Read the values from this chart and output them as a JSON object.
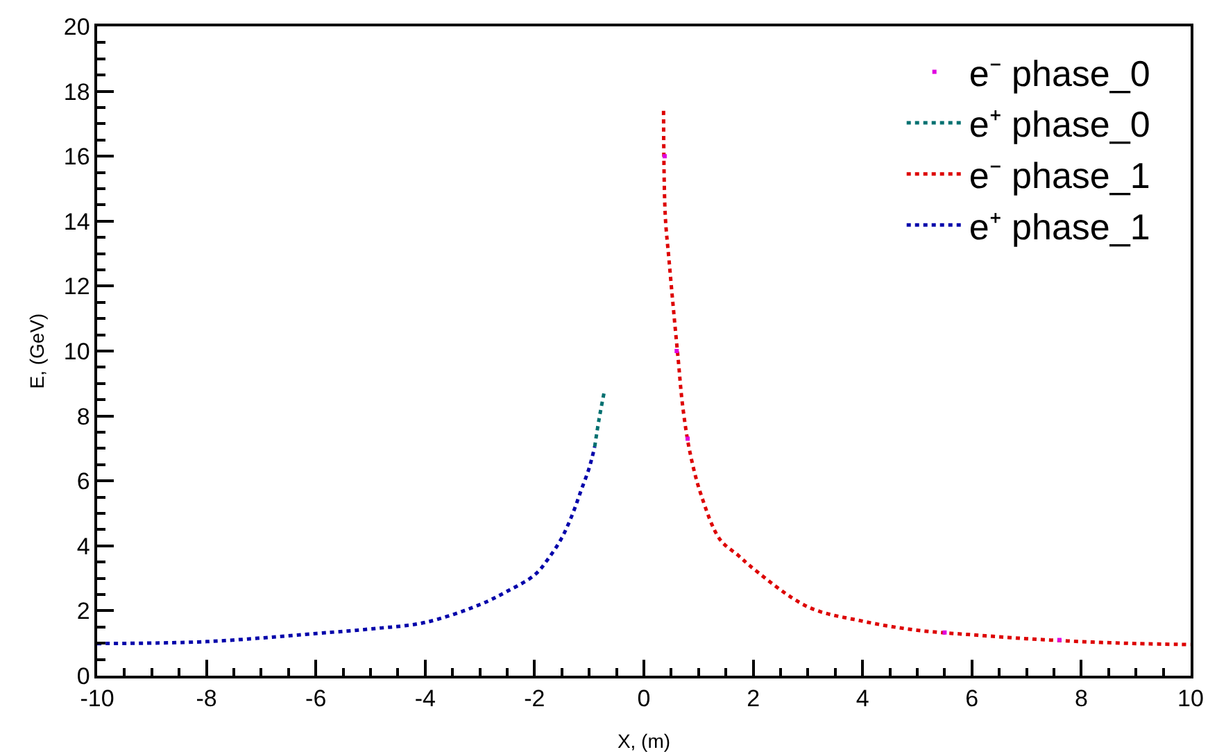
{
  "chart_data": {
    "type": "line",
    "xlabel": "X, (m)",
    "ylabel": "E, (GeV)",
    "xlim": [
      -10,
      10
    ],
    "xticks": [
      -10,
      -8,
      -6,
      -4,
      -2,
      0,
      2,
      4,
      6,
      8,
      10
    ],
    "ylim": [
      0,
      20
    ],
    "yticks": [
      0,
      2,
      4,
      6,
      8,
      10,
      12,
      14,
      16,
      18,
      20
    ],
    "grid": false,
    "legend": "top right",
    "marker": "none",
    "line_style": "dotted",
    "series": [
      {
        "name": "e⁻ phase_0",
        "color": "#e000e0",
        "type": "scatter",
        "marker": "square",
        "x": [
          0.38,
          0.6,
          0.8,
          5.5,
          7.6
        ],
        "values": [
          16.0,
          10.0,
          7.3,
          1.33,
          1.1
        ]
      },
      {
        "name": "e⁺ phase_0",
        "color": "#007070",
        "x": [
          -0.9,
          -0.82,
          -0.73
        ],
        "values": [
          7.05,
          7.9,
          8.7
        ]
      },
      {
        "name": "e⁻ phase_1",
        "color": "#dd0000",
        "x": [
          0.36,
          0.39,
          0.46,
          0.54,
          0.63,
          0.71,
          0.84,
          1.05,
          1.39,
          1.73,
          2,
          3,
          4,
          5,
          6,
          7,
          8,
          9,
          10
        ],
        "values": [
          17.4,
          14.2,
          12.8,
          11.3,
          9.7,
          8.3,
          6.9,
          5.55,
          4.2,
          3.7,
          3.3,
          2.12,
          1.68,
          1.4,
          1.26,
          1.14,
          1.05,
          0.99,
          0.96
        ]
      },
      {
        "name": "e⁺ phase_1",
        "color": "#0000aa",
        "x": [
          -10,
          -8,
          -6,
          -5,
          -4,
          -3,
          -2.5,
          -2,
          -1.75,
          -1.5,
          -1.3,
          -1.15,
          -1.0,
          -0.9
        ],
        "values": [
          0.99,
          1.05,
          1.3,
          1.44,
          1.64,
          2.19,
          2.6,
          3.1,
          3.6,
          4.25,
          5.0,
          5.7,
          6.4,
          7.05
        ]
      }
    ]
  }
}
